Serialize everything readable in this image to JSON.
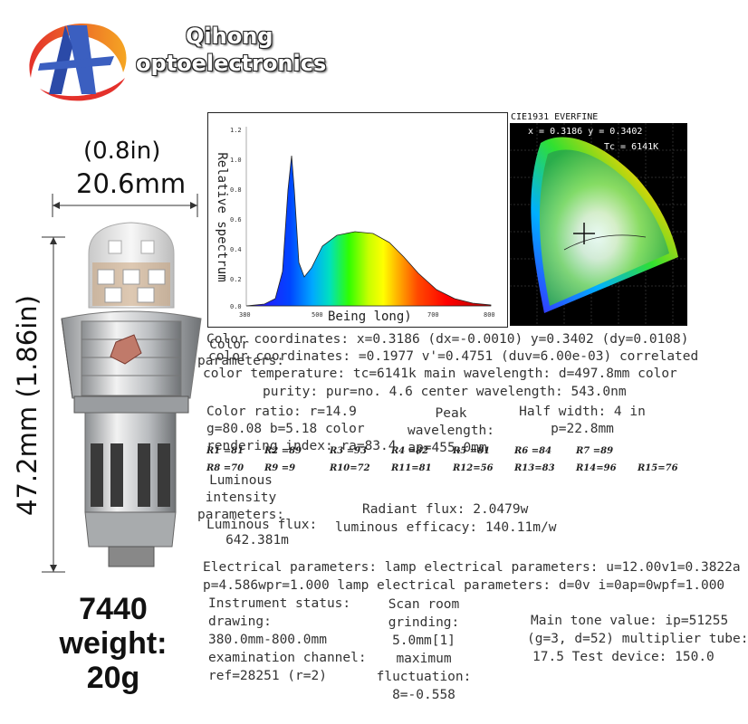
{
  "brand": {
    "line1": "Qihong",
    "line2": "optoelectronics"
  },
  "dimensions": {
    "width_in": "(0.8in)",
    "width_mm": "20.6mm",
    "height": "47.2mm (1.86in)"
  },
  "model": {
    "line1": "7440",
    "line2": "weight:",
    "line3": "20g"
  },
  "spectrum": {
    "ylabel": "Relative spectrum",
    "xlabel": "Being long)",
    "yticks": [
      "1.2",
      "1.0",
      "0.8",
      "0.6",
      "0.4",
      "0.2",
      "0.0"
    ],
    "xticks": [
      "380",
      "500",
      "700",
      "800"
    ]
  },
  "cie": {
    "title": "CIE1931 EVERFINE",
    "coords": "x = 0.3186  y = 0.3402",
    "tc": "Tc = 6141K"
  },
  "color_params": {
    "label": "Color parameters:",
    "l1": "Color coordinates: x=0.3186 (dx=-0.0010) y=0.3402 (dy=0.0108)",
    "l2": "color coordinates: =0.1977 v'=0.4751 (duv=6.00e-03) correlated",
    "l3": "color temperature: tc=6141k main wavelength: d=497.8mm color",
    "l4": "purity: pur=no. 4.6 center wavelength: 543.0nm"
  },
  "ratio": {
    "l1": "Color ratio: r=14.9",
    "l2": "g=80.08 b=5.18 color",
    "l3": "rendering index: ra=83.4",
    "peak1": "Peak",
    "peak2": "wavelength:",
    "peak3": "ap=455.0mm",
    "half1": "Half width: 4 in",
    "half2": "p=22.8mm"
  },
  "rvalues": {
    "row1": [
      "R1 =81",
      "R2 =89",
      "R3 =93",
      "R4 =82",
      "R5 =81",
      "R6 =84",
      "R7 =89"
    ],
    "row2": [
      "R8 =70",
      "R9 =9",
      "R10=72",
      "R11=81",
      "R12=56",
      "R13=83",
      "R14=96",
      "R15=76"
    ]
  },
  "luminous": {
    "l1": "Luminous",
    "l2": "intensity",
    "l3": "parameters:",
    "l4": "Luminous flux:",
    "l5": "642.381m",
    "radiant": "Radiant flux: 2.0479w",
    "efficacy": "luminous efficacy: 140.11m/w"
  },
  "electrical": {
    "l1": "Electrical parameters: lamp electrical parameters: u=12.00v1=0.3822a",
    "l2": "p=4.586wpr=1.000 lamp electrical parameters: d=0v i=0ap=0wpf=1.000"
  },
  "instrument": {
    "l1": "Instrument status:",
    "l2": "drawing:",
    "l3": "380.0mm-800.0mm",
    "l4": "examination channel:",
    "l5": "ref=28251 (r=2)"
  },
  "scan": {
    "l1": "Scan room",
    "l2": "grinding:",
    "l3": "5.0mm[1]",
    "l4": "maximum",
    "l5": "fluctuation:",
    "l6": "8=-0.558"
  },
  "tone": {
    "l1": "Main tone value: ip=51255",
    "l2": "(g=3, d=52) multiplier tube:",
    "l3": "17.5  Test device: 150.0"
  }
}
